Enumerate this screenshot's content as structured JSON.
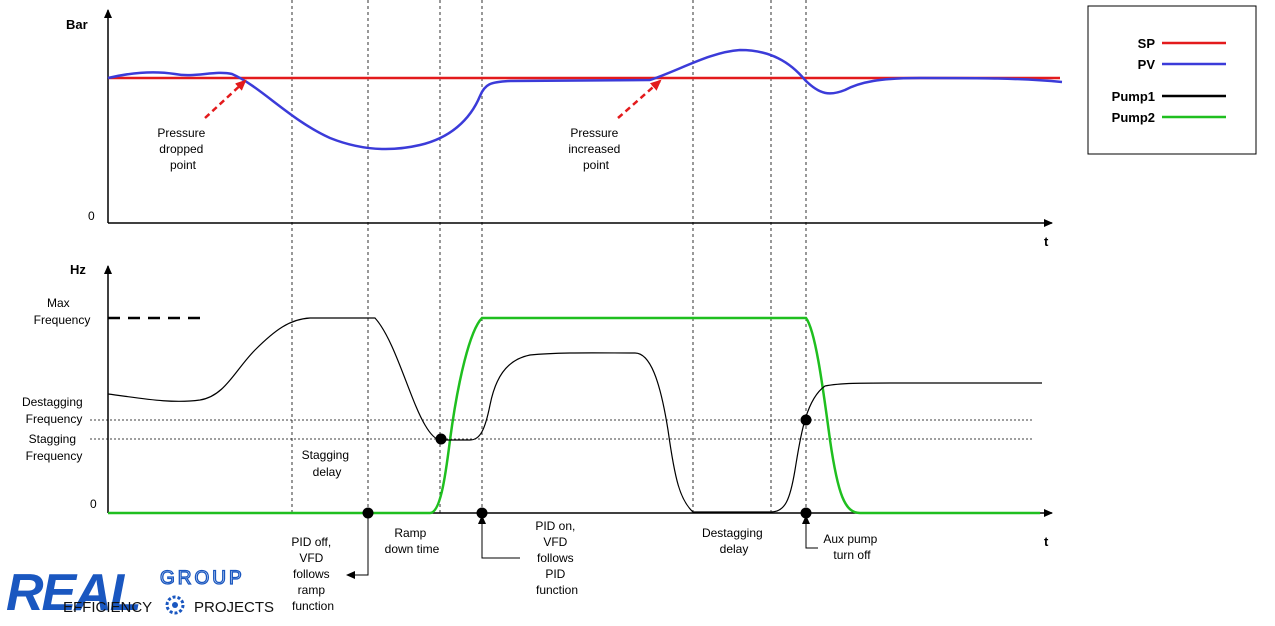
{
  "colors": {
    "sp": "#e31a1c",
    "pv": "#3b3bd9",
    "pump1": "#000000",
    "pump2": "#1fbf1f",
    "brand_blue": "#1a57c0"
  },
  "top_chart": {
    "y_axis_label": "Bar",
    "y_zero_label": "0",
    "x_axis_label": "t",
    "annotations": {
      "pressure_dropped": [
        "Pressure",
        "dropped",
        "point"
      ],
      "pressure_increased": [
        "Pressure",
        "increased",
        "point"
      ]
    }
  },
  "bottom_chart": {
    "y_axis_label": "Hz",
    "y_zero_label": "0",
    "x_axis_label": "t",
    "level_labels": {
      "max_frequency": [
        "Max",
        "Frequency"
      ],
      "destagging_frequency": [
        "Destagging",
        "Frequency"
      ],
      "stagging_frequency": [
        "Stagging",
        "Frequency"
      ]
    },
    "annotations": {
      "stagging_delay": [
        "Stagging",
        "delay"
      ],
      "pid_off": [
        "PID off,",
        "VFD",
        "follows",
        "ramp",
        "function"
      ],
      "ramp_down": [
        "Ramp",
        "down time"
      ],
      "pid_on": [
        "PID on,",
        "VFD",
        "follows",
        "PID",
        "function"
      ],
      "destagging_delay": [
        "Destagging",
        "delay"
      ],
      "aux_pump_off": [
        "Aux pump",
        "turn off"
      ]
    }
  },
  "legend": {
    "items": [
      {
        "label": "SP",
        "color_key": "sp"
      },
      {
        "label": "PV",
        "color_key": "pv"
      },
      {
        "label": "Pump1",
        "color_key": "pump1"
      },
      {
        "label": "Pump2",
        "color_key": "pump2"
      }
    ]
  },
  "logo": {
    "word_real": "REAL",
    "word_group": "GROUP",
    "word_efficiency": "EFFICIENCY",
    "word_projects": "PROJECTS"
  }
}
